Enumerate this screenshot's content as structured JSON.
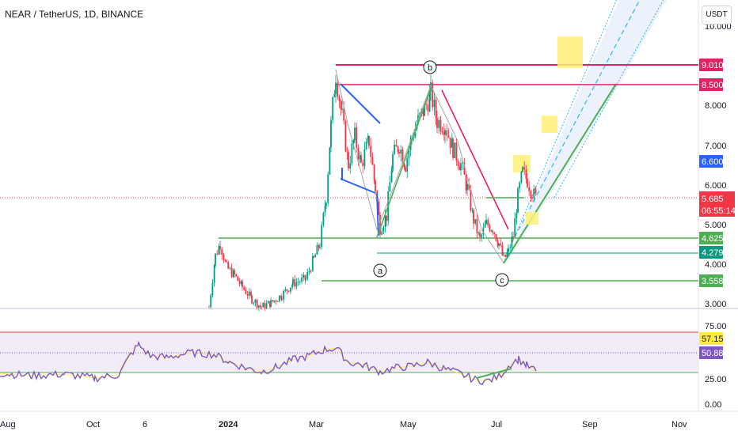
{
  "title": "NEAR / TetherUS, 1D, BINANCE",
  "currency_button": "USDT",
  "chart_data": [
    {
      "type": "candlestick",
      "title": "NEAR / TetherUS, 1D, BINANCE",
      "y_ticks": [
        "3.000",
        "4.000",
        "5.000",
        "6.000",
        "7.000",
        "8.000",
        "10.000"
      ],
      "x_ticks": [
        "Aug",
        "Oct",
        "6",
        "2024",
        "Mar",
        "May",
        "Jul",
        "Sep",
        "Nov"
      ],
      "price_tags": [
        {
          "value": "9.010",
          "color": "#e91e63"
        },
        {
          "value": "8.500",
          "color": "#e91e63"
        },
        {
          "value": "6.600",
          "color": "#2962ff"
        },
        {
          "value": "5.685",
          "color": "#f23645"
        },
        {
          "value": "06:55:14",
          "color": "#f23645"
        },
        {
          "value": "4.625",
          "color": "#4caf50"
        },
        {
          "value": "4.279",
          "color": "#089981"
        },
        {
          "value": "3.558",
          "color": "#4caf50"
        }
      ],
      "wave_labels": [
        "a",
        "b",
        "c"
      ],
      "last_price": 5.685
    },
    {
      "type": "line",
      "indicator": "RSI",
      "y_ticks": [
        "75.00",
        "25.00",
        "0.00"
      ],
      "tags": [
        {
          "value": "57.15",
          "color": "#ffeb3b"
        },
        {
          "value": "50.88",
          "color": "#7e57c2"
        }
      ],
      "levels": [
        70,
        50,
        30
      ]
    }
  ],
  "colors": {
    "up": "#089981",
    "down": "#f23645",
    "rsi_line": "#7e57c2",
    "pink": "#e91e63",
    "green": "#4caf50",
    "blue": "#2962ff",
    "highlight": "#fff176"
  }
}
